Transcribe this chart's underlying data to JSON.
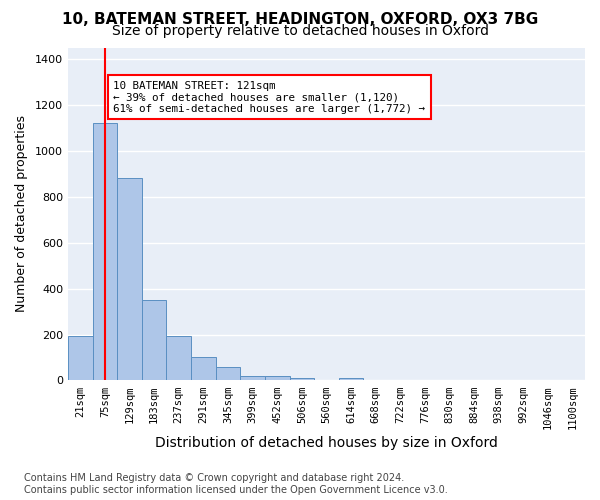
{
  "title_line1": "10, BATEMAN STREET, HEADINGTON, OXFORD, OX3 7BG",
  "title_line2": "Size of property relative to detached houses in Oxford",
  "xlabel": "Distribution of detached houses by size in Oxford",
  "ylabel": "Number of detached properties",
  "footnote": "Contains HM Land Registry data © Crown copyright and database right 2024.\nContains public sector information licensed under the Open Government Licence v3.0.",
  "bin_labels": [
    "21sqm",
    "75sqm",
    "129sqm",
    "183sqm",
    "237sqm",
    "291sqm",
    "345sqm",
    "399sqm",
    "452sqm",
    "506sqm",
    "560sqm",
    "614sqm",
    "668sqm",
    "722sqm",
    "776sqm",
    "830sqm",
    "884sqm",
    "938sqm",
    "992sqm",
    "1046sqm",
    "1100sqm"
  ],
  "bar_heights": [
    193,
    1120,
    880,
    352,
    193,
    102,
    57,
    20,
    18,
    12,
    0,
    10,
    0,
    0,
    0,
    0,
    0,
    0,
    0,
    0,
    0
  ],
  "bar_color": "#aec6e8",
  "bar_edge_color": "#5a8fc2",
  "property_bin_index": 1,
  "annotation_text": "10 BATEMAN STREET: 121sqm\n← 39% of detached houses are smaller (1,120)\n61% of semi-detached houses are larger (1,772) →",
  "annotation_box_color": "white",
  "annotation_box_edge": "red",
  "ylim": [
    0,
    1450
  ],
  "yticks": [
    0,
    200,
    400,
    600,
    800,
    1000,
    1200,
    1400
  ],
  "background_color": "#e8eef7",
  "grid_color": "white",
  "title1_fontsize": 11,
  "title2_fontsize": 10,
  "xlabel_fontsize": 10,
  "ylabel_fontsize": 9,
  "tick_fontsize": 7.5,
  "footnote_fontsize": 7
}
